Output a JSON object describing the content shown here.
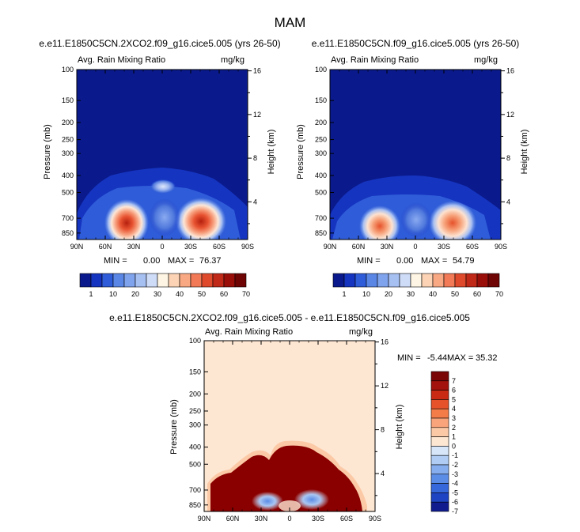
{
  "figure": {
    "title": "MAM",
    "panel_left": {
      "title": "e.e11.E1850C5CN.2XCO2.f09_g16.cice5.005 (yrs 26-50)",
      "field": "Avg. Rain Mixing Ratio",
      "units": "mg/kg",
      "min_label": "MIN =",
      "min_value": "0.00",
      "max_label": "MAX =",
      "max_value": "76.37"
    },
    "panel_right": {
      "title": "e.e11.E1850C5CN.f09_g16.cice5.005 (yrs 26-50)",
      "field": "Avg. Rain Mixing Ratio",
      "units": "mg/kg",
      "min_label": "MIN =",
      "min_value": "0.00",
      "max_label": "MAX =",
      "max_value": "54.79"
    },
    "panel_diff": {
      "title": "e.e11.E1850C5CN.2XCO2.f09_g16.cice5.005 - e.e11.E1850C5CN.f09_g16.cice5.005",
      "field": "Avg. Rain Mixing Ratio",
      "units": "mg/kg",
      "min_label": "MIN =",
      "min_value": "-5.44",
      "max_label": "MAX =",
      "max_value": "35.32"
    }
  },
  "chart_data": [
    {
      "type": "heatmap",
      "title": "e.e11.E1850C5CN.2XCO2.f09_g16.cice5.005 (yrs 26-50)",
      "field": "Avg. Rain Mixing Ratio",
      "units": "mg/kg",
      "xlabel": "",
      "ylabel": "Pressure (mb)",
      "ylabel_right": "Height (km)",
      "x_ticks": [
        "90N",
        "60N",
        "30N",
        "0",
        "30S",
        "60S",
        "90S"
      ],
      "y_ticks": [
        "100",
        "150",
        "200",
        "250",
        "300",
        "400",
        "500",
        "700",
        "850"
      ],
      "y_ticks_right": [
        "16",
        "12",
        "8",
        "4"
      ],
      "min": 0.0,
      "max": 76.37,
      "maxima": [
        {
          "lat": 22,
          "pressure": 760,
          "value": 76.37
        },
        {
          "lat": -38,
          "pressure": 720,
          "value": 70
        }
      ],
      "colorbar_labels": [
        "1",
        "10",
        "20",
        "30",
        "40",
        "50",
        "60",
        "70"
      ]
    },
    {
      "type": "heatmap",
      "title": "e.e11.E1850C5CN.f09_g16.cice5.005 (yrs 26-50)",
      "field": "Avg. Rain Mixing Ratio",
      "units": "mg/kg",
      "xlabel": "",
      "ylabel": "Pressure (mb)",
      "ylabel_right": "Height (km)",
      "x_ticks": [
        "90N",
        "60N",
        "30N",
        "0",
        "30S",
        "60S",
        "90S"
      ],
      "y_ticks": [
        "100",
        "150",
        "200",
        "250",
        "300",
        "400",
        "500",
        "700",
        "850"
      ],
      "y_ticks_right": [
        "16",
        "12",
        "8",
        "4"
      ],
      "min": 0.0,
      "max": 54.79,
      "maxima": [
        {
          "lat": 22,
          "pressure": 780,
          "value": 50
        },
        {
          "lat": -38,
          "pressure": 730,
          "value": 54.79
        }
      ],
      "colorbar_labels": [
        "1",
        "10",
        "20",
        "30",
        "40",
        "50",
        "60",
        "70"
      ]
    },
    {
      "type": "heatmap",
      "title": "e.e11.E1850C5CN.2XCO2.f09_g16.cice5.005 - e.e11.E1850C5CN.f09_g16.cice5.005",
      "field": "Avg. Rain Mixing Ratio",
      "units": "mg/kg",
      "xlabel": "",
      "ylabel": "Pressure (mb)",
      "ylabel_right": "Height (km)",
      "x_ticks": [
        "90N",
        "60N",
        "30N",
        "0",
        "30S",
        "60S",
        "90S"
      ],
      "y_ticks": [
        "100",
        "150",
        "200",
        "250",
        "300",
        "400",
        "500",
        "700",
        "850"
      ],
      "y_ticks_right": [
        "16",
        "12",
        "8",
        "4"
      ],
      "min": -5.44,
      "max": 35.32,
      "colorbar_labels": [
        "7",
        "6",
        "5",
        "4",
        "3",
        "2",
        "1",
        "0",
        "-1",
        "-2",
        "-3",
        "-4",
        "-5",
        "-6",
        "-7"
      ]
    }
  ],
  "colors": {
    "seq_scale": [
      "#0a1a8c",
      "#1534c0",
      "#2f5cd8",
      "#5a86e6",
      "#7fa3ec",
      "#a7c0f2",
      "#cfdcf8",
      "#fff5e4",
      "#fcd3b5",
      "#f8a882",
      "#f27a56",
      "#e04a2c",
      "#c02818",
      "#9a0e0a",
      "#6e0404"
    ],
    "div_scale": [
      "#7a0606",
      "#a3120c",
      "#c82a14",
      "#e6522a",
      "#f47c48",
      "#f9a47a",
      "#fcc9a6",
      "#fde6d2",
      "#d8e6fa",
      "#b0ccf4",
      "#86aeee",
      "#5b8ce6",
      "#3668dc",
      "#1e44c4",
      "#101c8e"
    ],
    "sat_red": "#8a0000",
    "neutral": "#fde6d2"
  }
}
